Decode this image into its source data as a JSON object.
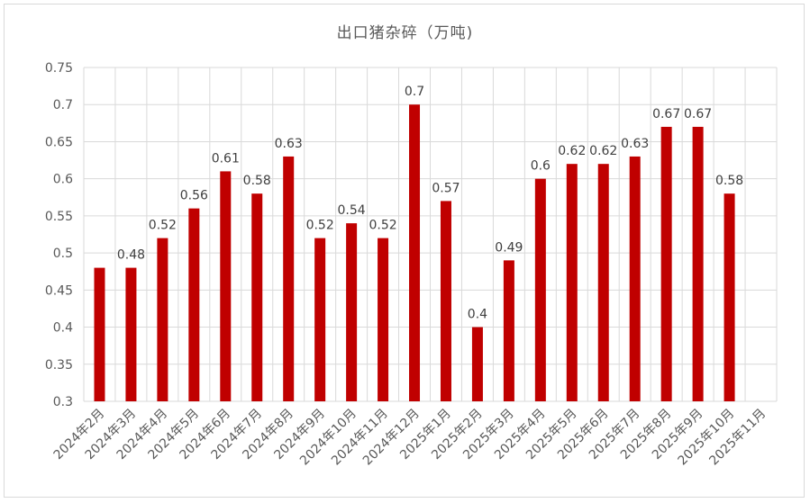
{
  "chart_data": {
    "type": "bar",
    "title": "出口猪杂碎（万吨)",
    "xlabel": "",
    "ylabel": "",
    "ylim": [
      0.3,
      0.75
    ],
    "yticks": [
      "0.3",
      "0.35",
      "0.4",
      "0.45",
      "0.5",
      "0.55",
      "0.6",
      "0.65",
      "0.7",
      "0.75"
    ],
    "grid": true,
    "bar_color": "#c00000",
    "categories": [
      "2024年2月",
      "2024年3月",
      "2024年4月",
      "2024年5月",
      "2024年6月",
      "2024年7月",
      "2024年8月",
      "2024年9月",
      "2024年10月",
      "2024年11月",
      "2024年12月",
      "2025年1月",
      "2025年2月",
      "2025年3月",
      "2025年4月",
      "2025年5月",
      "2025年6月",
      "2025年7月",
      "2025年8月",
      "2025年9月",
      "2025年10月",
      "2025年11月"
    ],
    "values": [
      0.48,
      0.48,
      0.52,
      0.56,
      0.61,
      0.58,
      0.63,
      0.52,
      0.54,
      0.52,
      0.7,
      0.57,
      0.4,
      0.49,
      0.6,
      0.62,
      0.62,
      0.63,
      0.67,
      0.67,
      0.58,
      null
    ],
    "data_labels": [
      null,
      "0.48",
      "0.52",
      "0.56",
      "0.61",
      "0.58",
      "0.63",
      "0.52",
      "0.54",
      "0.52",
      "0.7",
      "0.57",
      "0.4",
      "0.49",
      "0.6",
      "0.62",
      "0.62",
      "0.63",
      "0.67",
      "0.67",
      "0.58",
      null
    ]
  }
}
